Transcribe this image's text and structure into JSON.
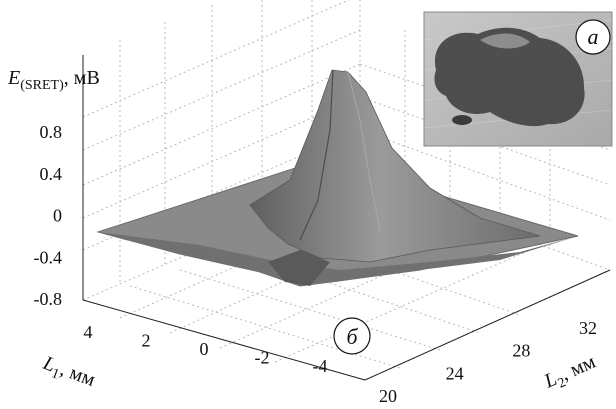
{
  "chart_data": {
    "type": "surface3d",
    "title": "",
    "zlabel": {
      "symbol": "E",
      "subscript": "(SRET)",
      "unit": ", мВ"
    },
    "xlabel": {
      "symbol": "L",
      "subscript": "1",
      "unit": ", мм"
    },
    "ylabel": {
      "symbol": "L",
      "subscript": "2",
      "unit": ", мм"
    },
    "z_ticks": [
      "0.8",
      "0.4",
      "0",
      "-0.4",
      "-0.8"
    ],
    "x_ticks": [
      "4",
      "2",
      "0",
      "-2",
      "-4"
    ],
    "y_ticks": [
      "20",
      "24",
      "28",
      "32"
    ],
    "zlim": [
      -0.8,
      1.0
    ],
    "xlim": [
      4,
      -4
    ],
    "ylim": [
      20,
      34
    ],
    "peak": {
      "L1": 0,
      "L2": 27,
      "E": 1.0
    },
    "baseline": {
      "E": 0.0
    },
    "grid": true,
    "surface_color": "#7a7a7a"
  },
  "panels": {
    "inset_label": "a",
    "main_label": "б"
  },
  "inset": {
    "description_icon": "microscope-photo-icon",
    "background": "#bdbdbd",
    "sample_color": "#3f3f3f"
  }
}
